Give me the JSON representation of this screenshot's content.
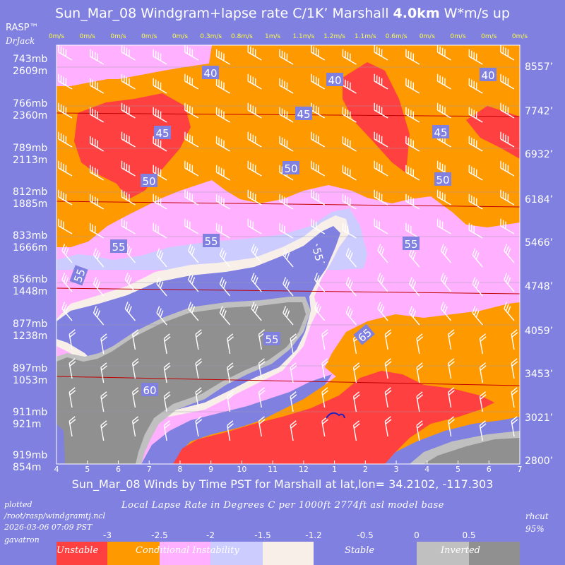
{
  "title": {
    "prefix": "Sun_Mar_08 Windgram+lapse rate C/1K’  Marshall ",
    "height": "4.0km",
    "suffix": "  W*m/s up"
  },
  "brand": "RASP™",
  "author": "DrJack",
  "subtitle": "Sun_Mar_08 Winds by Time PST for Marshall at lat,lon= 34.2102, -117.303",
  "lapse_title": "Local Lapse Rate in Degrees C per 1000ft  2774ft asl model base",
  "plotted": [
    "plotted",
    "/root/rasp/windgramtj.ncl",
    "2026-03-06 07:09 PST",
    "gavatron"
  ],
  "rhcut": [
    "rhcut",
    "95%"
  ],
  "colors": {
    "unstable": "#ff4040",
    "conditional": "#ff9900",
    "pink": "#ffb0ff",
    "lavender": "#ccccff",
    "cream": "#f8f0e8",
    "stable": "#8080e0",
    "inverted_light": "#c0c0c0",
    "inverted_dark": "#909090",
    "background": "#8080e0"
  },
  "chart_data": {
    "type": "heatmap",
    "x_axis": {
      "label": "Time PST",
      "ticks": [
        "4",
        "5",
        "6",
        "7",
        "8",
        "9",
        "10",
        "11",
        "12",
        "1",
        "2",
        "3",
        "4",
        "5",
        "6",
        "7"
      ]
    },
    "thermal_updraft_top": [
      "0m/s",
      "0m/s",
      "0m/s",
      "0m/s",
      "0m/s",
      "0.3m/s",
      "0.8m/s",
      "1m/s",
      "1.1m/s",
      "1.2m/s",
      "1.1m/s",
      "0.6m/s",
      "0m/s",
      "0m/s",
      "0m/s",
      "0m/s"
    ],
    "y_left": [
      {
        "mb": "743mb",
        "m": "2609m"
      },
      {
        "mb": "766mb",
        "m": "2360m"
      },
      {
        "mb": "789mb",
        "m": "2113m"
      },
      {
        "mb": "812mb",
        "m": "1885m"
      },
      {
        "mb": "833mb",
        "m": "1666m"
      },
      {
        "mb": "856mb",
        "m": "1448m"
      },
      {
        "mb": "877mb",
        "m": "1238m"
      },
      {
        "mb": "897mb",
        "m": "1053m"
      },
      {
        "mb": "911mb",
        "m": "921m"
      },
      {
        "mb": "919mb",
        "m": "854m"
      }
    ],
    "y_right": [
      "8557’",
      "7742’",
      "6932’",
      "6184’",
      "5466’",
      "4748’",
      "4059’",
      "3453’",
      "3021’",
      "2800’"
    ],
    "contour_labels": [
      "40",
      "40",
      "40",
      "45",
      "45",
      "45",
      "50",
      "50",
      "50",
      "55",
      "55",
      "55",
      "55",
      "55",
      "55",
      "60",
      "65"
    ],
    "colorbar": {
      "ticks": [
        "-3",
        "-2.5",
        "-2",
        "-1.5",
        "-1.2",
        "-0.5",
        "0",
        "0.5"
      ],
      "categories": [
        "Unstable",
        "Conditional Instability",
        "Stable",
        "Inverted"
      ]
    }
  }
}
